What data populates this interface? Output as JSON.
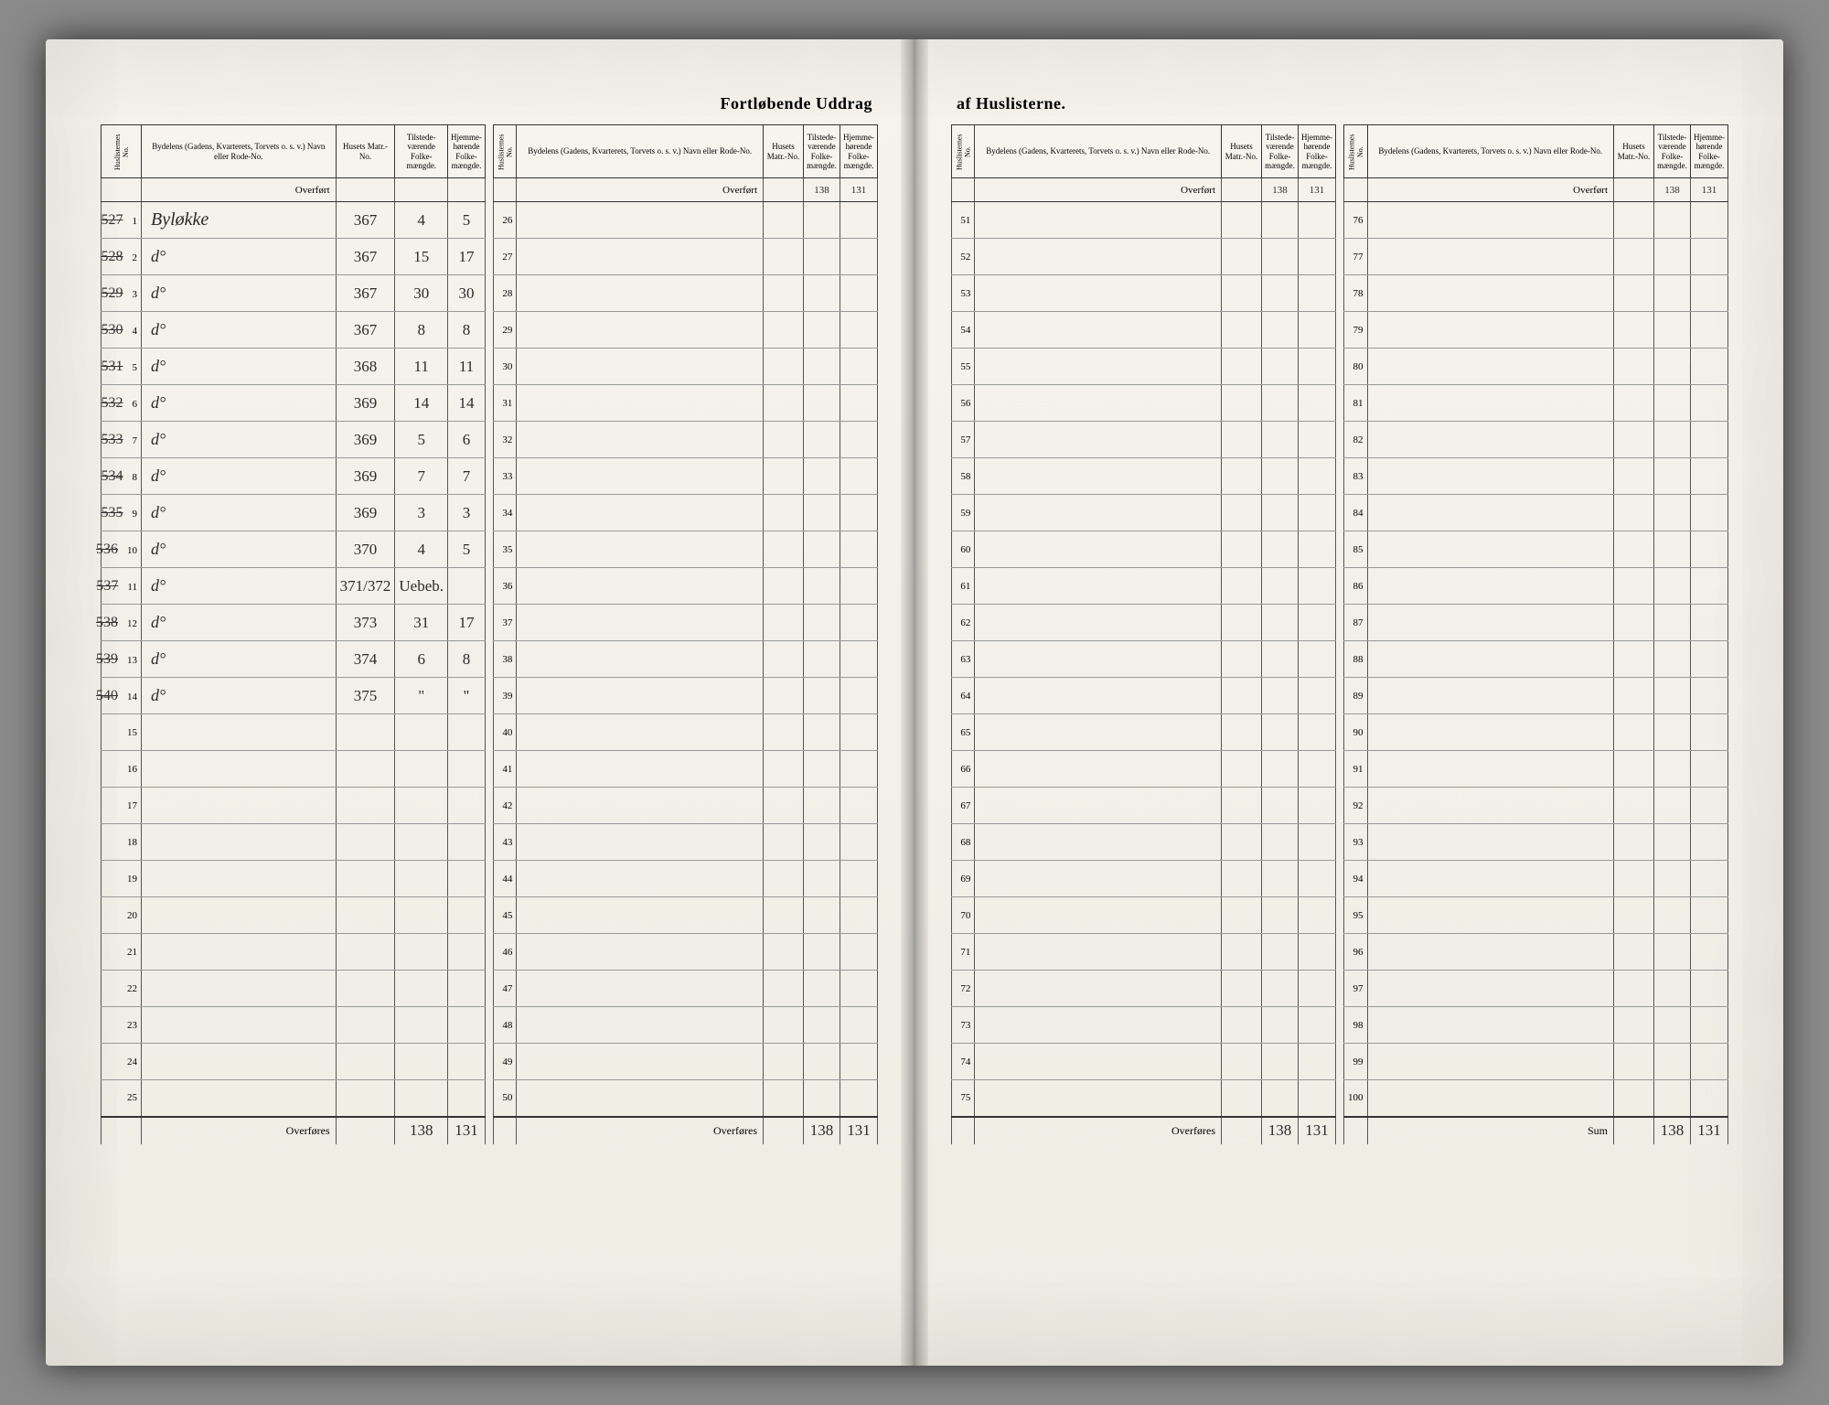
{
  "title_left": "Fortløbende Uddrag",
  "title_right": "af Huslisterne.",
  "headers": {
    "huslister": "Huslisternes No.",
    "bydel": "Bydelens (Gadens, Kvarterets, Torvets o. s. v.) Navn eller Rode-No.",
    "matr": "Husets Matr.-No.",
    "tilstede": "Tilstede-værende Folke-mængde.",
    "hjemme": "Hjemme-hørende Folke-mængde."
  },
  "overfort_label": "Overført",
  "overfores_label": "Overføres",
  "sum_label": "Sum",
  "sections": [
    {
      "overfort": {
        "t": "",
        "h": ""
      },
      "rows": [
        {
          "n": 1,
          "margin": "527",
          "desc": "Byløkke",
          "matr": "367",
          "t": "4",
          "h": "5"
        },
        {
          "n": 2,
          "margin": "528",
          "desc": "d°",
          "matr": "367",
          "t": "15",
          "h": "17"
        },
        {
          "n": 3,
          "margin": "529",
          "desc": "d°",
          "matr": "367",
          "t": "30",
          "h": "30"
        },
        {
          "n": 4,
          "margin": "530",
          "desc": "d°",
          "matr": "367",
          "t": "8",
          "h": "8"
        },
        {
          "n": 5,
          "margin": "531",
          "desc": "d°",
          "matr": "368",
          "t": "11",
          "h": "11"
        },
        {
          "n": 6,
          "margin": "532",
          "desc": "d°",
          "matr": "369",
          "t": "14",
          "h": "14"
        },
        {
          "n": 7,
          "margin": "533",
          "desc": "d°",
          "matr": "369",
          "t": "5",
          "h": "6"
        },
        {
          "n": 8,
          "margin": "534",
          "desc": "d°",
          "matr": "369",
          "t": "7",
          "h": "7"
        },
        {
          "n": 9,
          "margin": "535",
          "desc": "d°",
          "matr": "369",
          "t": "3",
          "h": "3"
        },
        {
          "n": 10,
          "margin": "536",
          "desc": "d°",
          "matr": "370",
          "t": "4",
          "h": "5"
        },
        {
          "n": 11,
          "margin": "537",
          "desc": "d°",
          "matr": "371/372",
          "t": "Uebeb.",
          "h": ""
        },
        {
          "n": 12,
          "margin": "538",
          "desc": "d°",
          "matr": "373",
          "t": "31",
          "h": "17"
        },
        {
          "n": 13,
          "margin": "539",
          "desc": "d°",
          "matr": "374",
          "t": "6",
          "h": "8"
        },
        {
          "n": 14,
          "margin": "540",
          "desc": "d°",
          "matr": "375",
          "t": "\"",
          "h": "\""
        },
        {
          "n": 15
        },
        {
          "n": 16
        },
        {
          "n": 17
        },
        {
          "n": 18
        },
        {
          "n": 19
        },
        {
          "n": 20
        },
        {
          "n": 21
        },
        {
          "n": 22
        },
        {
          "n": 23
        },
        {
          "n": 24
        },
        {
          "n": 25
        }
      ],
      "footer": {
        "label": "Overføres",
        "t": "138",
        "h": "131"
      }
    },
    {
      "overfort": {
        "t": "138",
        "h": "131"
      },
      "rows": [
        {
          "n": 26
        },
        {
          "n": 27
        },
        {
          "n": 28
        },
        {
          "n": 29
        },
        {
          "n": 30
        },
        {
          "n": 31
        },
        {
          "n": 32
        },
        {
          "n": 33
        },
        {
          "n": 34
        },
        {
          "n": 35
        },
        {
          "n": 36
        },
        {
          "n": 37
        },
        {
          "n": 38
        },
        {
          "n": 39
        },
        {
          "n": 40
        },
        {
          "n": 41
        },
        {
          "n": 42
        },
        {
          "n": 43
        },
        {
          "n": 44
        },
        {
          "n": 45
        },
        {
          "n": 46
        },
        {
          "n": 47
        },
        {
          "n": 48
        },
        {
          "n": 49
        },
        {
          "n": 50
        }
      ],
      "footer": {
        "label": "Overføres",
        "t": "138",
        "h": "131"
      }
    },
    {
      "overfort": {
        "t": "138",
        "h": "131"
      },
      "rows": [
        {
          "n": 51
        },
        {
          "n": 52
        },
        {
          "n": 53
        },
        {
          "n": 54
        },
        {
          "n": 55
        },
        {
          "n": 56
        },
        {
          "n": 57
        },
        {
          "n": 58
        },
        {
          "n": 59
        },
        {
          "n": 60
        },
        {
          "n": 61
        },
        {
          "n": 62
        },
        {
          "n": 63
        },
        {
          "n": 64
        },
        {
          "n": 65
        },
        {
          "n": 66
        },
        {
          "n": 67
        },
        {
          "n": 68
        },
        {
          "n": 69
        },
        {
          "n": 70
        },
        {
          "n": 71
        },
        {
          "n": 72
        },
        {
          "n": 73
        },
        {
          "n": 74
        },
        {
          "n": 75
        }
      ],
      "footer": {
        "label": "Overføres",
        "t": "138",
        "h": "131"
      }
    },
    {
      "overfort": {
        "t": "138",
        "h": "131"
      },
      "rows": [
        {
          "n": 76
        },
        {
          "n": 77
        },
        {
          "n": 78
        },
        {
          "n": 79
        },
        {
          "n": 80
        },
        {
          "n": 81
        },
        {
          "n": 82
        },
        {
          "n": 83
        },
        {
          "n": 84
        },
        {
          "n": 85
        },
        {
          "n": 86
        },
        {
          "n": 87
        },
        {
          "n": 88
        },
        {
          "n": 89
        },
        {
          "n": 90
        },
        {
          "n": 91
        },
        {
          "n": 92
        },
        {
          "n": 93
        },
        {
          "n": 94
        },
        {
          "n": 95
        },
        {
          "n": 96
        },
        {
          "n": 97
        },
        {
          "n": 98
        },
        {
          "n": 99
        },
        {
          "n": 100
        }
      ],
      "footer": {
        "label": "Sum",
        "t": "138",
        "h": "131"
      }
    }
  ]
}
